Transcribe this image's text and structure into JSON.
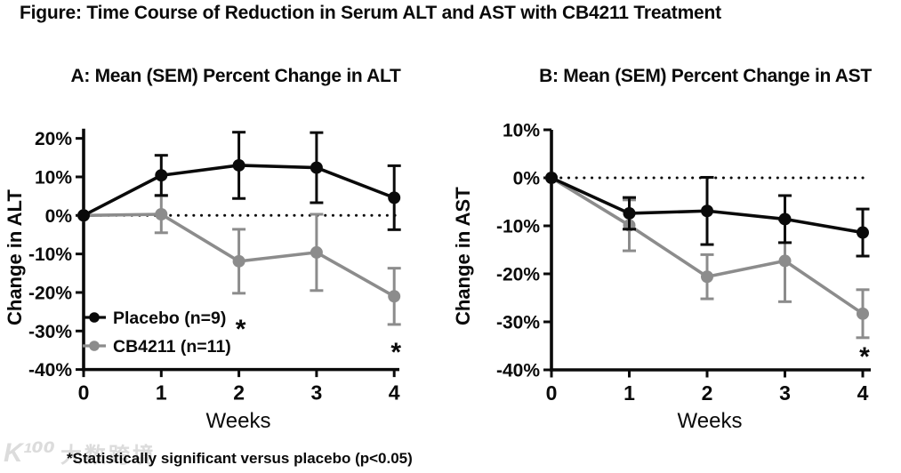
{
  "figure": {
    "title": "Figure: Time Course of Reduction in Serum ALT and AST with CB4211 Treatment"
  },
  "footnote": "*Statistically significant versus placebo (p<0.05)",
  "watermark": {
    "logo": "K¹⁰⁰",
    "text": "大数跨境"
  },
  "colors": {
    "ink": "#0a0a0a",
    "placebo": "#0a0a0a",
    "cb4211": "#8c8c8c",
    "watermark": "#dcdcdc"
  },
  "chart_data": [
    {
      "id": "alt",
      "type": "line",
      "panel_title": "A: Mean (SEM) Percent Change in ALT",
      "ylabel": "Change in ALT",
      "xlabel": "Weeks",
      "x": [
        0,
        1,
        2,
        3,
        4
      ],
      "x_tick_labels": [
        "0",
        "1",
        "2",
        "3",
        "4"
      ],
      "y_ticks": [
        20,
        10,
        0,
        -10,
        -20,
        -30,
        -40
      ],
      "y_tick_labels": [
        "20%",
        "10%",
        "0%",
        "-10%",
        "-20%",
        "-30%",
        "-40%"
      ],
      "ylim": [
        -40,
        22.5
      ],
      "zero_reference_line": "dotted",
      "grid": false,
      "legend_position": "inside-lower-left",
      "show_legend": true,
      "series": [
        {
          "name": "Placebo (n=9)",
          "color_key": "placebo",
          "values": [
            0,
            10.4,
            13.0,
            12.4,
            4.6
          ],
          "sem": [
            0,
            5.2,
            8.6,
            9.1,
            8.3
          ]
        },
        {
          "name": "CB4211 (n=11)",
          "color_key": "cb4211",
          "values": [
            0,
            0.3,
            -11.9,
            -9.6,
            -21.0
          ],
          "sem": [
            0,
            4.8,
            8.3,
            9.9,
            7.3
          ]
        }
      ],
      "significance_markers": [
        {
          "week": 2,
          "y": -28.5,
          "symbol": "*"
        },
        {
          "week": 4,
          "y": -34.5,
          "symbol": "*"
        }
      ]
    },
    {
      "id": "ast",
      "type": "line",
      "panel_title": "B: Mean (SEM) Percent Change in AST",
      "ylabel": "Change in AST",
      "xlabel": "Weeks",
      "x": [
        0,
        1,
        2,
        3,
        4
      ],
      "x_tick_labels": [
        "0",
        "1",
        "2",
        "3",
        "4"
      ],
      "y_ticks": [
        10,
        0,
        -10,
        -20,
        -30,
        -40
      ],
      "y_tick_labels": [
        "10%",
        "0%",
        "-10%",
        "-20%",
        "-30%",
        "-40%"
      ],
      "ylim": [
        -40,
        10
      ],
      "zero_reference_line": "dotted",
      "grid": false,
      "legend_position": "none",
      "show_legend": false,
      "series": [
        {
          "name": "Placebo (n=9)",
          "color_key": "placebo",
          "values": [
            0,
            -7.4,
            -6.9,
            -8.6,
            -11.4
          ],
          "sem": [
            0,
            3.3,
            7.0,
            4.9,
            4.9
          ]
        },
        {
          "name": "CB4211 (n=11)",
          "color_key": "cb4211",
          "values": [
            0,
            -9.9,
            -20.6,
            -17.3,
            -28.3
          ],
          "sem": [
            0,
            5.3,
            4.6,
            8.5,
            5.0
          ]
        }
      ],
      "significance_markers": [
        {
          "week": 4,
          "y": -36.5,
          "symbol": "*"
        }
      ]
    }
  ]
}
